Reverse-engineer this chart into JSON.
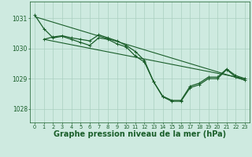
{
  "background_color": "#ceeae0",
  "grid_color": "#aacfbf",
  "line_color": "#1a5e2a",
  "xlabel": "Graphe pression niveau de la mer (hPa)",
  "xlabel_fontsize": 7.0,
  "ylabel_ticks": [
    1028,
    1029,
    1030,
    1031
  ],
  "xlim": [
    -0.5,
    23.5
  ],
  "ylim": [
    1027.55,
    1031.55
  ],
  "xticks": [
    0,
    1,
    2,
    3,
    4,
    5,
    6,
    7,
    8,
    9,
    10,
    11,
    12,
    13,
    14,
    15,
    16,
    17,
    18,
    19,
    20,
    21,
    22,
    23
  ],
  "series": [
    {
      "x": [
        0,
        1,
        2,
        3,
        4,
        5,
        6,
        7,
        8,
        9,
        10,
        11,
        12,
        13,
        14,
        15,
        16,
        17,
        18,
        19,
        20,
        21,
        22,
        23
      ],
      "y": [
        1031.1,
        1030.65,
        1030.35,
        1030.4,
        1030.3,
        1030.2,
        1030.1,
        1030.35,
        1030.3,
        1030.15,
        1030.05,
        1029.75,
        1029.55,
        1028.9,
        1028.4,
        1028.25,
        1028.25,
        1028.7,
        1028.8,
        1029.0,
        1029.0,
        1029.3,
        1029.05,
        1028.95
      ],
      "marker": "+",
      "markersize": 3.5,
      "linewidth": 0.9
    },
    {
      "x": [
        1,
        2,
        3,
        4,
        5,
        6,
        7,
        8,
        9,
        10,
        11,
        12,
        13,
        14,
        15,
        16,
        17,
        18,
        19,
        20,
        21,
        22,
        23
      ],
      "y": [
        1030.3,
        1030.38,
        1030.42,
        1030.35,
        1030.3,
        1030.25,
        1030.45,
        1030.35,
        1030.25,
        1030.1,
        1029.9,
        1029.6,
        1028.9,
        1028.42,
        1028.28,
        1028.28,
        1028.75,
        1028.85,
        1029.05,
        1029.05,
        1029.32,
        1029.1,
        1029.0
      ],
      "marker": "+",
      "markersize": 3.5,
      "linewidth": 0.9
    },
    {
      "x": [
        0,
        23
      ],
      "y": [
        1031.05,
        1028.95
      ],
      "marker": "",
      "markersize": 0,
      "linewidth": 0.8
    },
    {
      "x": [
        1,
        23
      ],
      "y": [
        1030.3,
        1029.0
      ],
      "marker": "",
      "markersize": 0,
      "linewidth": 0.8
    }
  ]
}
